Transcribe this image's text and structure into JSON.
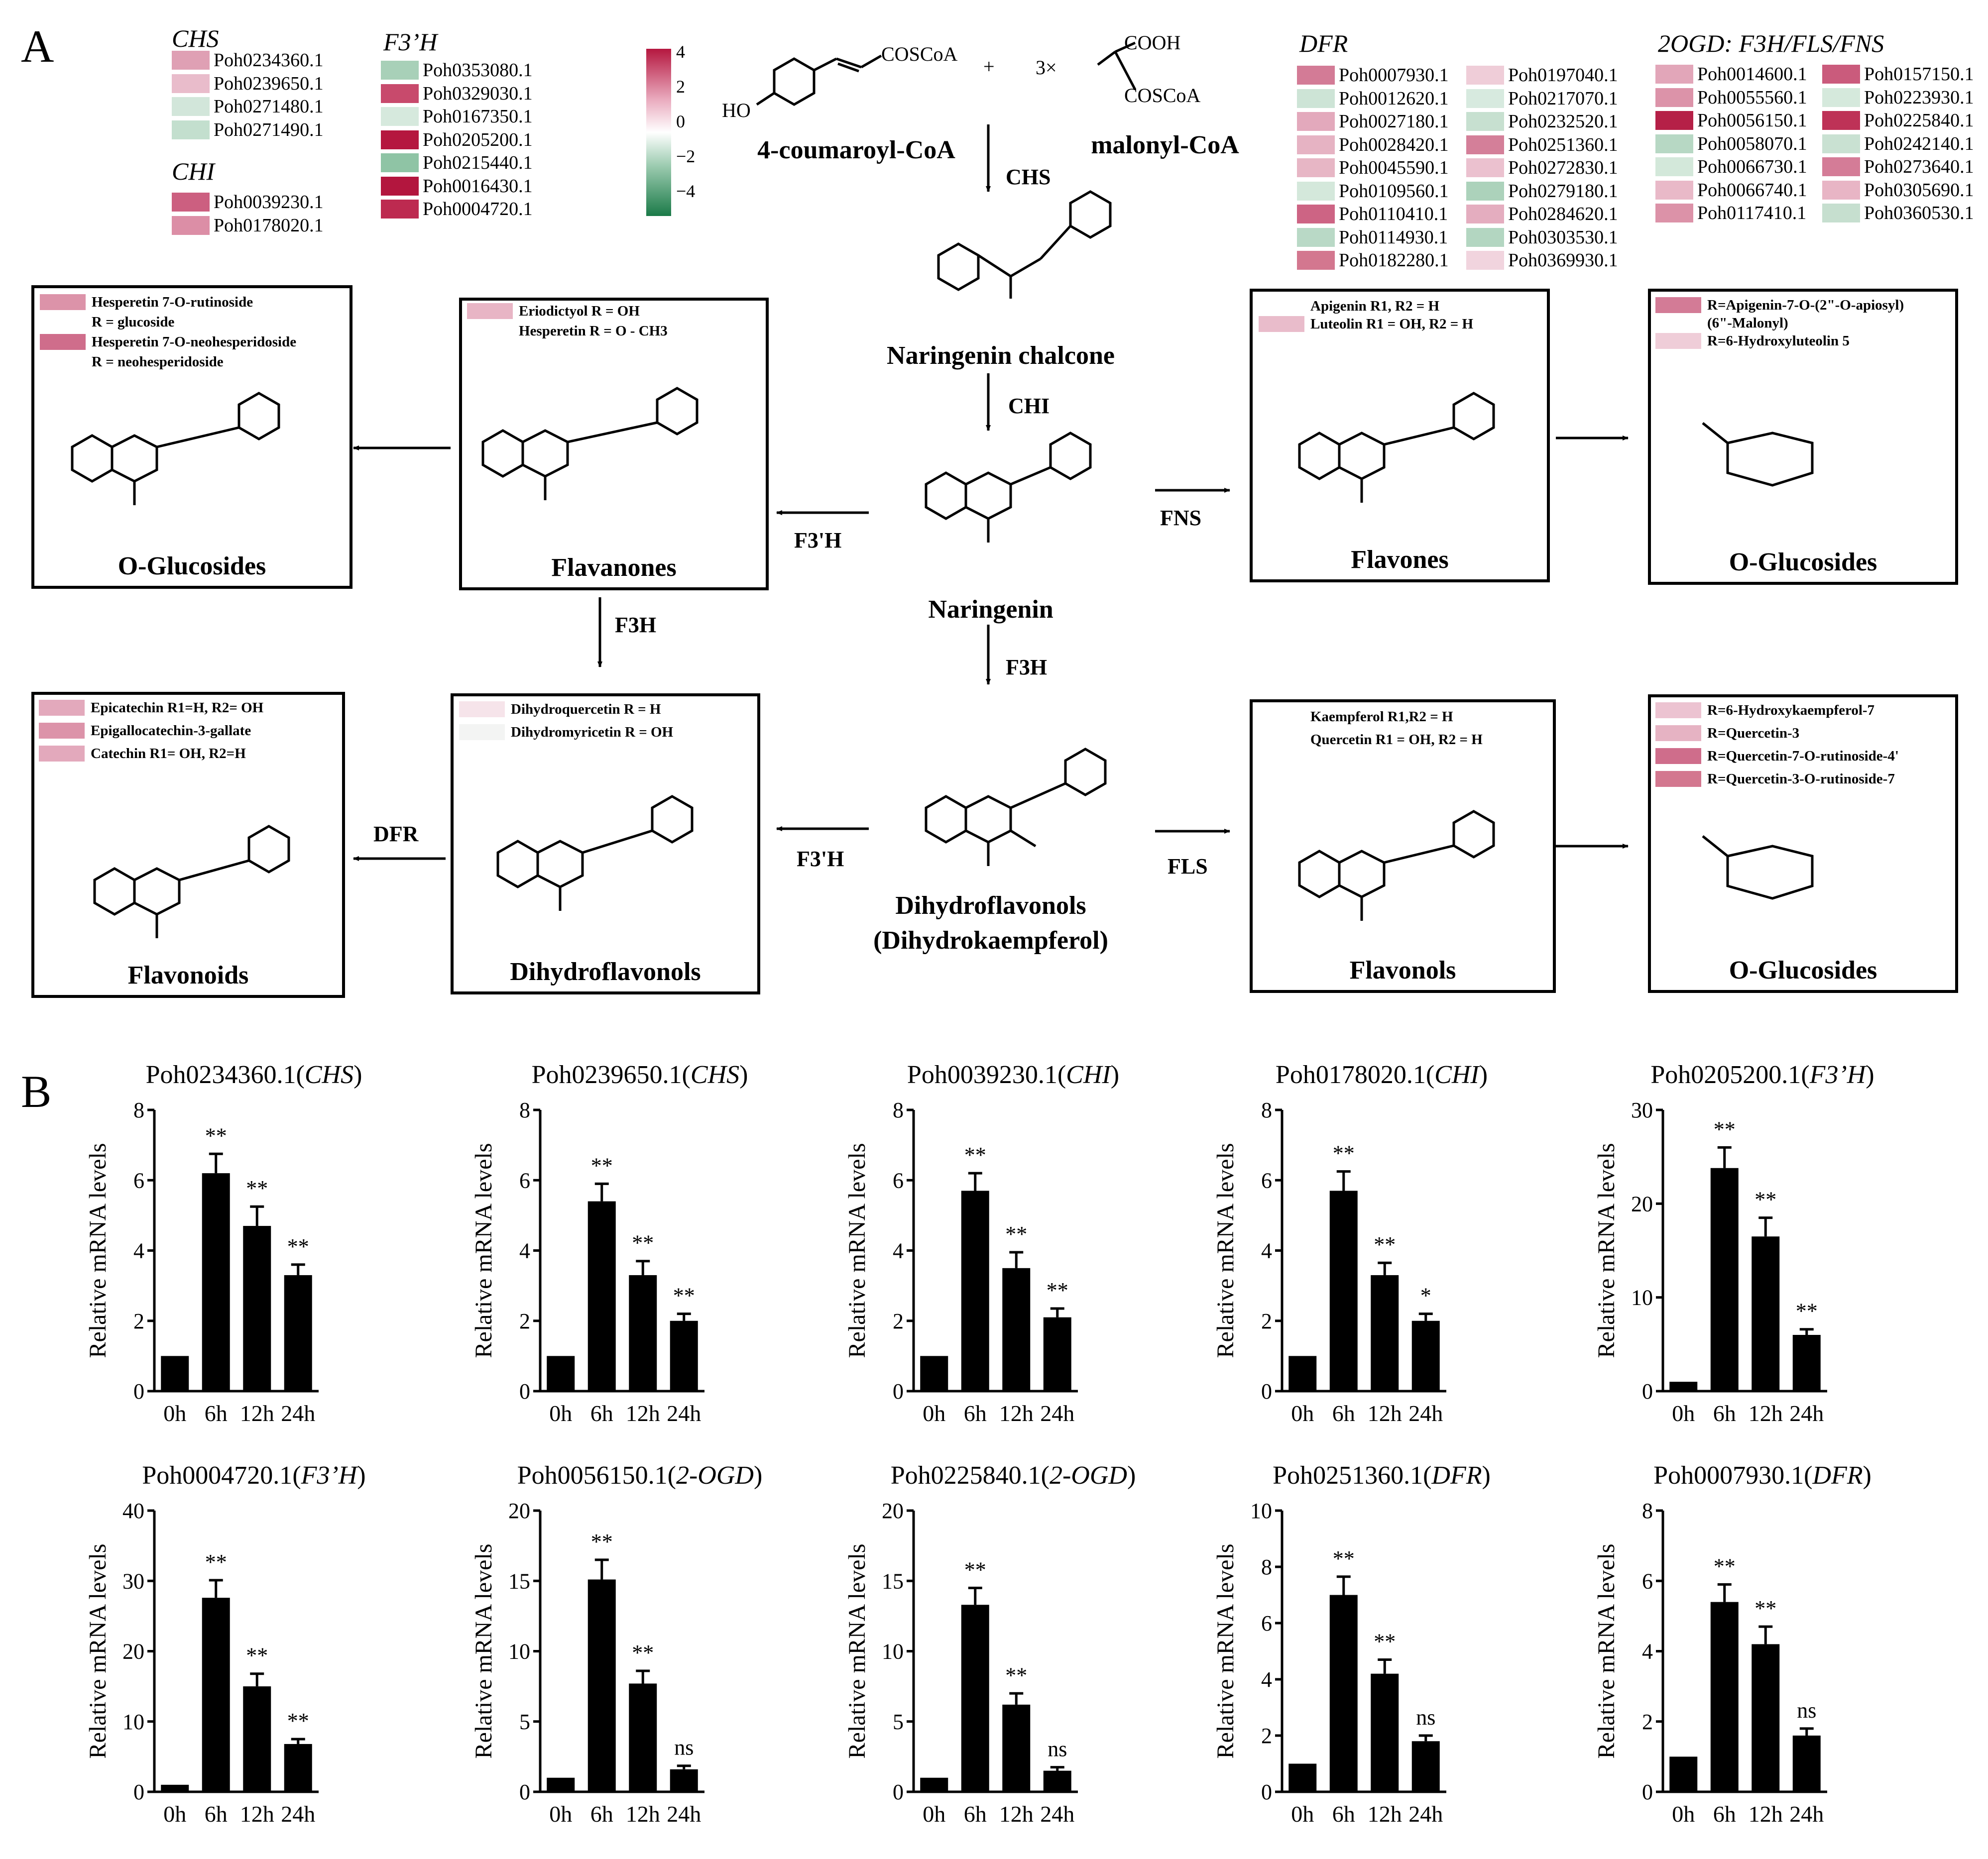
{
  "panel_a": {
    "letter": "A",
    "colorbar": {
      "ticks": [
        "4",
        "2",
        "0",
        "−2",
        "−4"
      ]
    },
    "gene_groups": [
      {
        "title": "CHS",
        "genes": [
          {
            "id": "Poh0234360.1",
            "color": "#dfa0b4"
          },
          {
            "id": "Poh0239650.1",
            "color": "#e9bccb"
          },
          {
            "id": "Poh0271480.1",
            "color": "#d2e6da"
          },
          {
            "id": "Poh0271490.1",
            "color": "#c3dfce"
          }
        ]
      },
      {
        "title": "CHI",
        "genes": [
          {
            "id": "Poh0039230.1",
            "color": "#cc5f80"
          },
          {
            "id": "Poh0178020.1",
            "color": "#dc8ea6"
          }
        ]
      },
      {
        "title": "F3’H",
        "genes": [
          {
            "id": "Poh0353080.1",
            "color": "#a8d0b8"
          },
          {
            "id": "Poh0329030.1",
            "color": "#c84a6c"
          },
          {
            "id": "Poh0167350.1",
            "color": "#d6e9dd"
          },
          {
            "id": "Poh0205200.1",
            "color": "#b5173f"
          },
          {
            "id": "Poh0215440.1",
            "color": "#8fc4a5"
          },
          {
            "id": "Poh0016430.1",
            "color": "#b3163e"
          },
          {
            "id": "Poh0004720.1",
            "color": "#bd2a50"
          }
        ]
      },
      {
        "title": "DFR",
        "genes": [
          {
            "id": "Poh0007930.1",
            "color": "#d37b96"
          },
          {
            "id": "Poh0012620.1",
            "color": "#cde4d6"
          },
          {
            "id": "Poh0027180.1",
            "color": "#e3a9bc"
          },
          {
            "id": "Poh0028420.1",
            "color": "#e6b3c3"
          },
          {
            "id": "Poh0045590.1",
            "color": "#e7b6c5"
          },
          {
            "id": "Poh0109560.1",
            "color": "#d4e8db"
          },
          {
            "id": "Poh0110410.1",
            "color": "#cd6484"
          },
          {
            "id": "Poh0114930.1",
            "color": "#b9d9c6"
          },
          {
            "id": "Poh0182280.1",
            "color": "#d3778f"
          },
          {
            "id": "Poh0197040.1",
            "color": "#efcdd8"
          },
          {
            "id": "Poh0217070.1",
            "color": "#d7eadf"
          },
          {
            "id": "Poh0232520.1",
            "color": "#c7e0d0"
          },
          {
            "id": "Poh0251360.1",
            "color": "#d47f99"
          },
          {
            "id": "Poh0272830.1",
            "color": "#ebc1cf"
          },
          {
            "id": "Poh0279180.1",
            "color": "#acd2bb"
          },
          {
            "id": "Poh0284620.1",
            "color": "#e4adbf"
          },
          {
            "id": "Poh0303530.1",
            "color": "#b3d6c1"
          },
          {
            "id": "Poh0369930.1",
            "color": "#f1d4de"
          }
        ]
      },
      {
        "title": "2OGD: F3H/FLS/FNS",
        "genes": [
          {
            "id": "Poh0014600.1",
            "color": "#e2a6b9"
          },
          {
            "id": "Poh0055560.1",
            "color": "#dc93a9"
          },
          {
            "id": "Poh0056150.1",
            "color": "#b52047"
          },
          {
            "id": "Poh0058070.1",
            "color": "#b7d8c4"
          },
          {
            "id": "Poh0066730.1",
            "color": "#d3e8da"
          },
          {
            "id": "Poh0066740.1",
            "color": "#e9b9c8"
          },
          {
            "id": "Poh0117410.1",
            "color": "#dc92a8"
          },
          {
            "id": "Poh0157150.1",
            "color": "#ca5b7c"
          },
          {
            "id": "Poh0223930.1",
            "color": "#d5e9dc"
          },
          {
            "id": "Poh0225840.1",
            "color": "#be3257"
          },
          {
            "id": "Poh0242140.1",
            "color": "#c9e1d2"
          },
          {
            "id": "Poh0273640.1",
            "color": "#d47c97"
          },
          {
            "id": "Poh0305690.1",
            "color": "#e8b5c5"
          },
          {
            "id": "Poh0360530.1",
            "color": "#c6dfcf"
          }
        ]
      }
    ],
    "substrates": {
      "coumaroyl": "4-coumaroyl-CoA",
      "malonyl": "malonyl-CoA",
      "plus": "+",
      "coscoa1": "COSCoA",
      "coscoa2": "COSCoA",
      "cooh": "COOH",
      "three": "3×",
      "ho": "HO"
    },
    "enzymes": {
      "chs": "CHS",
      "chi": "CHI",
      "f3h_center": "F3H",
      "f3h_left": "F3H",
      "f3ph_top": "F3'H",
      "f3ph_bottom": "F3'H",
      "fns": "FNS",
      "fls": "FLS",
      "dfr": "DFR"
    },
    "compound_names": {
      "chalcone": "Naringenin chalcone",
      "naringenin": "Naringenin",
      "dihydroflavonols_line1": "Dihydroflavonols",
      "dihydroflavonols_line2": "(Dihydrokaempferol)"
    },
    "boxes": {
      "o_glucosides_left": {
        "title": "O-Glucosides",
        "rows": [
          {
            "text": "Hesperetin 7-O-rutinoside",
            "color": "#dc93a9"
          },
          {
            "text": "R = glucoside",
            "color": null
          },
          {
            "text": "Hesperetin 7-O-neohesperidoside",
            "color": "#cf6d8b"
          },
          {
            "text": "R = neohesperidoside",
            "color": null
          }
        ]
      },
      "flavanones": {
        "title": "Flavanones",
        "rows": [
          {
            "text": "Eriodictyol R = OH",
            "color": "#e8b5c5"
          },
          {
            "text": "Hesperetin R = O - CH3",
            "color": null
          }
        ]
      },
      "flavones": {
        "title": "Flavones",
        "rows": [
          {
            "text": "Apigenin R1, R2 = H",
            "color": null
          },
          {
            "text": "Luteolin R1 = OH, R2 = H",
            "color": "#e9bccb"
          }
        ]
      },
      "o_glucosides_right_top": {
        "title": "O-Glucosides",
        "rows": [
          {
            "text": "R=Apigenin-7-O-(2\"-O-apiosyl)",
            "color": "#d37b96"
          },
          {
            "text": "(6\"-Malonyl)",
            "color": null
          },
          {
            "text": "R=6-Hydroxyluteolin 5",
            "color": "#efcdd8"
          }
        ]
      },
      "flavonoids": {
        "title": "Flavonoids",
        "rows": [
          {
            "text": "Epicatechin R1=H, R2= OH",
            "color": "#e3a9bc"
          },
          {
            "text": "Epigallocatechin-3-gallate",
            "color": "#dc93a9"
          },
          {
            "text": "Catechin  R1= OH, R2=H",
            "color": "#e3a9bc"
          }
        ]
      },
      "dihydroflavonols": {
        "title": "Dihydroflavonols",
        "rows": [
          {
            "text": "Dihydroquercetin R = H",
            "color": "#f6e4ea"
          },
          {
            "text": "Dihydromyricetin R = OH",
            "color": "#f3f4f3"
          }
        ]
      },
      "flavonols": {
        "title": "Flavonols",
        "rows": [
          {
            "text": "Kaempferol R1,R2 = H",
            "color": null
          },
          {
            "text": "Quercetin R1 = OH, R2 = H",
            "color": null
          }
        ]
      },
      "o_glucosides_right_bottom": {
        "title": "O-Glucosides",
        "rows": [
          {
            "text": "R=6-Hydroxykaempferol-7",
            "color": "#ecc3d1"
          },
          {
            "text": "R=Quercetin-3",
            "color": "#e6b3c3"
          },
          {
            "text": "R=Quercetin-7-O-rutinoside-4'",
            "color": "#cf6d8b"
          },
          {
            "text": "R=Quercetin-3-O-rutinoside-7",
            "color": "#d3778f"
          }
        ]
      }
    }
  },
  "panel_b": {
    "letter": "B",
    "chart_data": [
      {
        "type": "bar",
        "title": "Poh0234360.1",
        "gene_family": "CHS",
        "ylabel": "Relative mRNA levels",
        "categories": [
          "0h",
          "6h",
          "12h",
          "24h"
        ],
        "values": [
          1,
          6.2,
          4.7,
          3.3
        ],
        "errors": [
          0,
          0.55,
          0.55,
          0.3
        ],
        "significance": [
          "",
          "**",
          "**",
          "**"
        ],
        "ylim": [
          0,
          8
        ],
        "yticks": [
          0,
          2,
          4,
          6,
          8
        ]
      },
      {
        "type": "bar",
        "title": "Poh0239650.1",
        "gene_family": "CHS",
        "ylabel": "Relative mRNA levels",
        "categories": [
          "0h",
          "6h",
          "12h",
          "24h"
        ],
        "values": [
          1,
          5.4,
          3.3,
          2.0
        ],
        "errors": [
          0,
          0.5,
          0.4,
          0.2
        ],
        "significance": [
          "",
          "**",
          "**",
          "**"
        ],
        "ylim": [
          0,
          8
        ],
        "yticks": [
          0,
          2,
          4,
          6,
          8
        ]
      },
      {
        "type": "bar",
        "title": "Poh0039230.1",
        "gene_family": "CHI",
        "ylabel": "Relative mRNA levels",
        "categories": [
          "0h",
          "6h",
          "12h",
          "24h"
        ],
        "values": [
          1,
          5.7,
          3.5,
          2.1
        ],
        "errors": [
          0,
          0.5,
          0.45,
          0.25
        ],
        "significance": [
          "",
          "**",
          "**",
          "**"
        ],
        "ylim": [
          0,
          8
        ],
        "yticks": [
          0,
          2,
          4,
          6,
          8
        ]
      },
      {
        "type": "bar",
        "title": "Poh0178020.1",
        "gene_family": "CHI",
        "ylabel": "Relative mRNA levels",
        "categories": [
          "0h",
          "6h",
          "12h",
          "24h"
        ],
        "values": [
          1,
          5.7,
          3.3,
          2.0
        ],
        "errors": [
          0,
          0.55,
          0.35,
          0.2
        ],
        "significance": [
          "",
          "**",
          "**",
          "*"
        ],
        "ylim": [
          0,
          8
        ],
        "yticks": [
          0,
          2,
          4,
          6,
          8
        ]
      },
      {
        "type": "bar",
        "title": "Poh0205200.1",
        "gene_family": "F3’H",
        "ylabel": "Relative mRNA levels",
        "categories": [
          "0h",
          "6h",
          "12h",
          "24h"
        ],
        "values": [
          1,
          23.8,
          16.5,
          6
        ],
        "errors": [
          0,
          2.2,
          2.0,
          0.6
        ],
        "significance": [
          "",
          "**",
          "**",
          "**"
        ],
        "ylim": [
          0,
          30
        ],
        "yticks": [
          0,
          10,
          20,
          30
        ]
      },
      {
        "type": "bar",
        "title": "Poh0004720.1",
        "gene_family": "F3’H",
        "ylabel": "Relative mRNA levels",
        "categories": [
          "0h",
          "6h",
          "12h",
          "24h"
        ],
        "values": [
          1,
          27.6,
          15,
          6.8
        ],
        "errors": [
          0,
          2.5,
          1.8,
          0.7
        ],
        "significance": [
          "",
          "**",
          "**",
          "**"
        ],
        "ylim": [
          0,
          40
        ],
        "yticks": [
          0,
          10,
          20,
          30,
          40
        ]
      },
      {
        "type": "bar",
        "title": "Poh0056150.1",
        "gene_family": "2-OGD",
        "ylabel": "Relative mRNA levels",
        "categories": [
          "0h",
          "6h",
          "12h",
          "24h"
        ],
        "values": [
          1,
          15.1,
          7.7,
          1.6
        ],
        "errors": [
          0,
          1.4,
          0.9,
          0.25
        ],
        "significance": [
          "",
          "**",
          "**",
          "ns"
        ],
        "ylim": [
          0,
          20
        ],
        "yticks": [
          0,
          5,
          10,
          15,
          20
        ]
      },
      {
        "type": "bar",
        "title": "Poh0225840.1",
        "gene_family": "2-OGD",
        "ylabel": "Relative mRNA levels",
        "categories": [
          "0h",
          "6h",
          "12h",
          "24h"
        ],
        "values": [
          1,
          13.3,
          6.2,
          1.5
        ],
        "errors": [
          0,
          1.2,
          0.8,
          0.25
        ],
        "significance": [
          "",
          "**",
          "**",
          "ns"
        ],
        "ylim": [
          0,
          20
        ],
        "yticks": [
          0,
          5,
          10,
          15,
          20
        ]
      },
      {
        "type": "bar",
        "title": "Poh0251360.1",
        "gene_family": "DFR",
        "ylabel": "Relative mRNA levels",
        "categories": [
          "0h",
          "6h",
          "12h",
          "24h"
        ],
        "values": [
          1,
          7.0,
          4.2,
          1.8
        ],
        "errors": [
          0,
          0.65,
          0.5,
          0.2
        ],
        "significance": [
          "",
          "**",
          "**",
          "ns"
        ],
        "ylim": [
          0,
          10
        ],
        "yticks": [
          0,
          2,
          4,
          6,
          8,
          10
        ]
      },
      {
        "type": "bar",
        "title": "Poh0007930.1",
        "gene_family": "DFR",
        "ylabel": "Relative mRNA levels",
        "categories": [
          "0h",
          "6h",
          "12h",
          "24h"
        ],
        "values": [
          1,
          5.4,
          4.2,
          1.6
        ],
        "errors": [
          0,
          0.5,
          0.5,
          0.2
        ],
        "significance": [
          "",
          "**",
          "**",
          "ns"
        ],
        "ylim": [
          0,
          8
        ],
        "yticks": [
          0,
          2,
          4,
          6,
          8
        ]
      }
    ]
  }
}
